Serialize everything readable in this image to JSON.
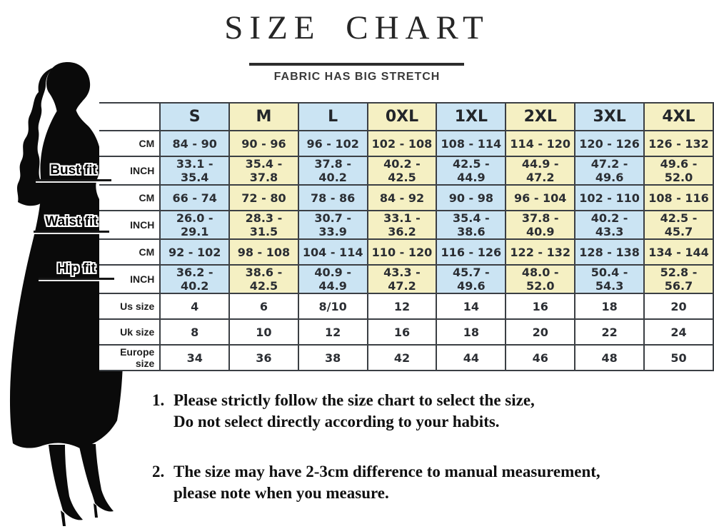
{
  "title": "SIZE CHART",
  "subtitle": "FABRIC HAS BIG STRETCH",
  "table": {
    "size_headers": [
      "S",
      "M",
      "L",
      "0XL",
      "1XL",
      "2XL",
      "3XL",
      "4XL"
    ],
    "unit_cm": "CM",
    "unit_inch": "INCH",
    "groups": [
      {
        "label": "Bust fit",
        "cm": [
          "84 - 90",
          "90 - 96",
          "96 - 102",
          "102 - 108",
          "108 - 114",
          "114 - 120",
          "120 - 126",
          "126 - 132"
        ],
        "inch": [
          "33.1 - 35.4",
          "35.4 - 37.8",
          "37.8 - 40.2",
          "40.2 - 42.5",
          "42.5 - 44.9",
          "44.9 - 47.2",
          "47.2 - 49.6",
          "49.6 - 52.0"
        ]
      },
      {
        "label": "Waist fit",
        "cm": [
          "66 - 74",
          "72 - 80",
          "78 - 86",
          "84 - 92",
          "90 - 98",
          "96 - 104",
          "102 - 110",
          "108 - 116"
        ],
        "inch": [
          "26.0 - 29.1",
          "28.3 - 31.5",
          "30.7 - 33.9",
          "33.1 - 36.2",
          "35.4 - 38.6",
          "37.8 - 40.9",
          "40.2 - 43.3",
          "42.5 - 45.7"
        ]
      },
      {
        "label": "Hip fit",
        "cm": [
          "92 - 102",
          "98 - 108",
          "104 - 114",
          "110 - 120",
          "116 - 126",
          "122 - 132",
          "128 - 138",
          "134 - 144"
        ],
        "inch": [
          "36.2 - 40.2",
          "38.6 - 42.5",
          "40.9 - 44.9",
          "43.3 - 47.2",
          "45.7 - 49.6",
          "48.0 - 52.0",
          "50.4 - 54.3",
          "52.8 - 56.7"
        ]
      }
    ],
    "size_rows": [
      {
        "label": "Us size",
        "values": [
          "4",
          "6",
          "8/10",
          "12",
          "14",
          "16",
          "18",
          "20"
        ]
      },
      {
        "label": "Uk size",
        "values": [
          "8",
          "10",
          "12",
          "16",
          "18",
          "20",
          "22",
          "24"
        ]
      },
      {
        "label": "Europe size",
        "values": [
          "34",
          "36",
          "38",
          "42",
          "44",
          "46",
          "48",
          "50"
        ]
      }
    ]
  },
  "notes": [
    {
      "num": "1.",
      "line1": "Please strictly follow the size chart to select the size,",
      "line2": "Do not select directly according to your habits."
    },
    {
      "num": "2.",
      "line1": "The size may have 2-3cm difference  to manual measurement,",
      "line2": "please note when you measure."
    }
  ],
  "colors": {
    "column_blue": "#cbe4f3",
    "column_yellow": "#f5f0c3",
    "grid_border": "#3b3f44",
    "silhouette_black": "#0a0a0a"
  }
}
